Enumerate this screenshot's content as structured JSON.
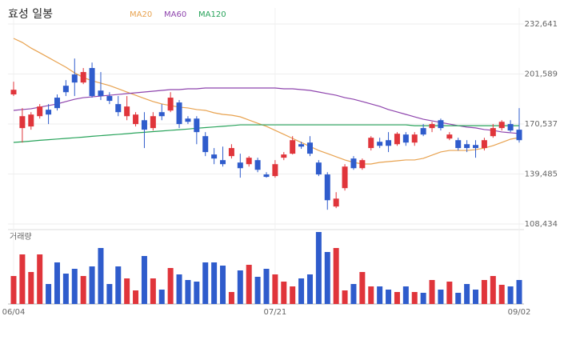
{
  "chart_data": {
    "type": "candlestick",
    "title": "효성 일봉",
    "volume_label": "거래량",
    "up_color": "#e0353b",
    "down_color": "#2f5ccc",
    "grid": true,
    "categories": [
      "06/04",
      null,
      null,
      null,
      null,
      null,
      null,
      null,
      null,
      null,
      null,
      null,
      null,
      null,
      null,
      null,
      null,
      null,
      null,
      null,
      null,
      null,
      null,
      null,
      null,
      null,
      null,
      null,
      null,
      null,
      "07/21",
      null,
      null,
      null,
      null,
      null,
      null,
      null,
      null,
      null,
      null,
      null,
      null,
      null,
      null,
      null,
      null,
      null,
      null,
      null,
      null,
      null,
      null,
      null,
      null,
      null,
      null,
      null,
      "09/02"
    ],
    "open": [
      188900,
      168000,
      169000,
      175400,
      179400,
      186900,
      194300,
      201300,
      196300,
      205300,
      191300,
      187900,
      182900,
      175400,
      170500,
      172900,
      168000,
      177900,
      178900,
      183900,
      173900,
      173900,
      163000,
      151600,
      148100,
      150600,
      146600,
      145600,
      148100,
      139200,
      138200,
      149600,
      152100,
      158000,
      159000,
      146600,
      139200,
      119300,
      130700,
      149100,
      143100,
      155600,
      159500,
      160500,
      158000,
      164000,
      159000,
      168000,
      168000,
      172900,
      161500,
      160500,
      158000,
      157500,
      155600,
      163000,
      168000,
      170500,
      167000
    ],
    "high": [
      196800,
      180400,
      177900,
      182900,
      182900,
      188900,
      197800,
      211200,
      205300,
      208700,
      202800,
      190300,
      187900,
      187900,
      177900,
      177900,
      177900,
      182900,
      190300,
      185400,
      175400,
      175400,
      165500,
      155600,
      156500,
      158000,
      152100,
      150600,
      149600,
      140600,
      148100,
      153100,
      163000,
      159500,
      163000,
      148100,
      140600,
      128200,
      145600,
      150600,
      149100,
      163000,
      162000,
      165500,
      165500,
      165500,
      165500,
      170500,
      171900,
      173900,
      165500,
      162000,
      160500,
      160500,
      162000,
      170500,
      172900,
      172900,
      180400
    ],
    "low": [
      187900,
      159000,
      167000,
      173900,
      170500,
      178900,
      187900,
      187900,
      195300,
      186900,
      185400,
      182900,
      175400,
      172900,
      169000,
      155600,
      166500,
      172900,
      177900,
      168000,
      170500,
      158000,
      150600,
      145600,
      144100,
      149100,
      137200,
      144100,
      140600,
      137200,
      137200,
      148100,
      151600,
      155100,
      150600,
      138200,
      117300,
      118300,
      129200,
      142100,
      142100,
      154100,
      155600,
      153100,
      157000,
      157000,
      157000,
      163000,
      165500,
      166500,
      160500,
      154100,
      153100,
      149600,
      154100,
      162000,
      166500,
      165500,
      159000
    ],
    "close": [
      191800,
      175400,
      176400,
      181400,
      176400,
      180400,
      190300,
      196300,
      202800,
      187900,
      187900,
      184900,
      177900,
      181400,
      176400,
      167000,
      175400,
      175400,
      186900,
      170500,
      171900,
      165500,
      153100,
      149100,
      145600,
      155600,
      143100,
      149600,
      142100,
      137700,
      145600,
      151600,
      160500,
      156500,
      152100,
      139200,
      123200,
      124200,
      144100,
      143100,
      148100,
      162000,
      157000,
      157000,
      164500,
      159000,
      164000,
      164000,
      170500,
      168000,
      164000,
      155600,
      155600,
      155600,
      160500,
      168000,
      171900,
      166500,
      160500
    ],
    "volume": [
      35,
      62,
      40,
      62,
      25,
      52,
      38,
      44,
      35,
      47,
      70,
      25,
      47,
      32,
      17,
      60,
      32,
      18,
      45,
      37,
      30,
      28,
      52,
      52,
      48,
      15,
      42,
      49,
      34,
      44,
      37,
      28,
      22,
      32,
      37,
      90,
      65,
      70,
      17,
      25,
      40,
      22,
      22,
      18,
      15,
      22,
      15,
      14,
      30,
      18,
      28,
      14,
      25,
      18,
      30,
      35,
      24,
      22,
      30
    ],
    "series": [
      {
        "name": "MA20",
        "color": "#e8a24f",
        "values": [
          223700,
          221200,
          217700,
          214800,
          211800,
          208800,
          205800,
          202300,
          199400,
          197400,
          195900,
          194400,
          192400,
          190400,
          188400,
          186400,
          184500,
          183000,
          182000,
          181000,
          180500,
          179500,
          179000,
          177500,
          176500,
          176000,
          175000,
          173000,
          171000,
          169100,
          166600,
          164100,
          161600,
          159100,
          156600,
          154100,
          152200,
          150200,
          148200,
          146700,
          145700,
          145700,
          146700,
          147200,
          147700,
          148200,
          148200,
          149200,
          151200,
          153200,
          154100,
          154100,
          154100,
          154600,
          155600,
          157100,
          159100,
          161100,
          162100
        ]
      },
      {
        "name": "MA60",
        "color": "#8e44ad",
        "values": [
          179000,
          179500,
          180000,
          181000,
          182000,
          183000,
          184500,
          185900,
          186900,
          187400,
          187900,
          188400,
          188900,
          189400,
          189900,
          190400,
          190900,
          191400,
          191900,
          191900,
          192400,
          192400,
          192900,
          192900,
          192900,
          192900,
          192900,
          192900,
          192900,
          192900,
          192900,
          192400,
          192400,
          191900,
          191400,
          190400,
          189400,
          188400,
          186900,
          185900,
          184500,
          183000,
          181500,
          179500,
          178000,
          176500,
          175000,
          173500,
          172500,
          171500,
          170500,
          169500,
          168600,
          168100,
          167100,
          166600,
          165600,
          165100,
          164600
        ]
      },
      {
        "name": "MA120",
        "color": "#27a35a",
        "values": [
          159100,
          159500,
          159900,
          160400,
          160800,
          161200,
          161600,
          162000,
          162400,
          162900,
          163300,
          163700,
          164100,
          164500,
          165000,
          165400,
          165800,
          166200,
          166600,
          167000,
          167400,
          167900,
          168300,
          168700,
          169100,
          169500,
          170000,
          170000,
          170000,
          170000,
          170000,
          170000,
          170000,
          170000,
          170000,
          170000,
          170000,
          170000,
          170000,
          170000,
          170000,
          170000,
          170000,
          170000,
          170000,
          170000,
          169500,
          169500,
          169500,
          169500,
          169500,
          169500,
          169500,
          169500,
          169500,
          169500,
          169500,
          169500,
          169500
        ]
      }
    ],
    "ylim": [
      108434,
      232641
    ],
    "yticks": [
      {
        "value": 108434,
        "label": "108,434"
      },
      {
        "value": 139485,
        "label": "139,485"
      },
      {
        "value": 170537,
        "label": "170,537"
      },
      {
        "value": 201589,
        "label": "201,589"
      },
      {
        "value": 232641,
        "label": "232,641"
      }
    ]
  }
}
